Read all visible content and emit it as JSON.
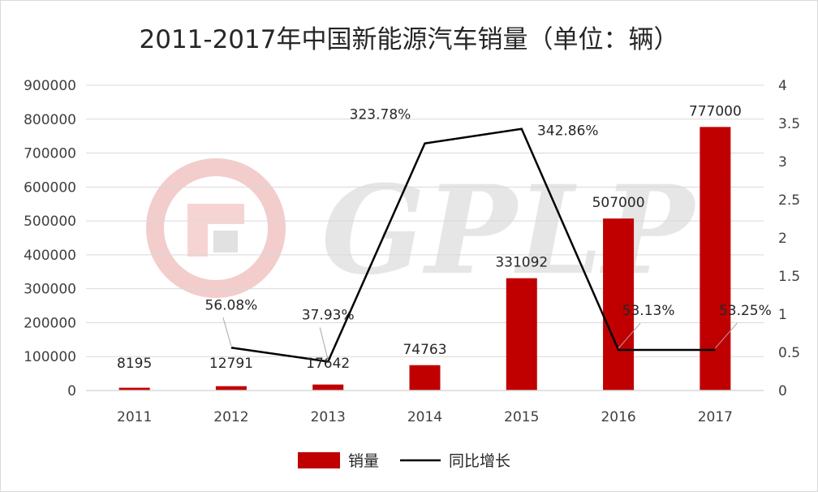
{
  "colors": {
    "bar": "#c00000",
    "line": "#000000",
    "grid": "#d9d9d9",
    "leader": "#a6a6a6",
    "watermark_red": "#ee8a8a",
    "watermark_gray": "#bfbfbf"
  },
  "watermark": {
    "text": "GPLP"
  },
  "chart_data": {
    "type": "bar",
    "title": "2011-2017年中国新能源汽车销量（单位：辆）",
    "categories": [
      "2011",
      "2012",
      "2013",
      "2014",
      "2015",
      "2016",
      "2017"
    ],
    "series": [
      {
        "name": "销量",
        "type": "bar",
        "axis": "left",
        "values": [
          8195,
          12791,
          17642,
          74763,
          331092,
          507000,
          777000
        ],
        "labels": [
          "8195",
          "12791",
          "17642",
          "74763",
          "331092",
          "507000",
          "777000"
        ]
      },
      {
        "name": "同比增长",
        "type": "line",
        "axis": "right",
        "values": [
          null,
          0.5608,
          0.3793,
          3.2378,
          3.4286,
          0.5313,
          0.5325
        ],
        "labels": [
          "",
          "56.08%",
          "37.93%",
          "323.78%",
          "342.86%",
          "53.13%",
          "53.25%"
        ]
      }
    ],
    "y_left": {
      "min": 0,
      "max": 900000,
      "ticks": [
        "0",
        "100000",
        "200000",
        "300000",
        "400000",
        "500000",
        "600000",
        "700000",
        "800000",
        "900000"
      ]
    },
    "y_right": {
      "min": 0,
      "max": 4,
      "ticks": [
        "0",
        "0.5",
        "1",
        "1.5",
        "2",
        "2.5",
        "3",
        "3.5",
        "4"
      ]
    },
    "grid": true,
    "legend_position": "bottom"
  }
}
